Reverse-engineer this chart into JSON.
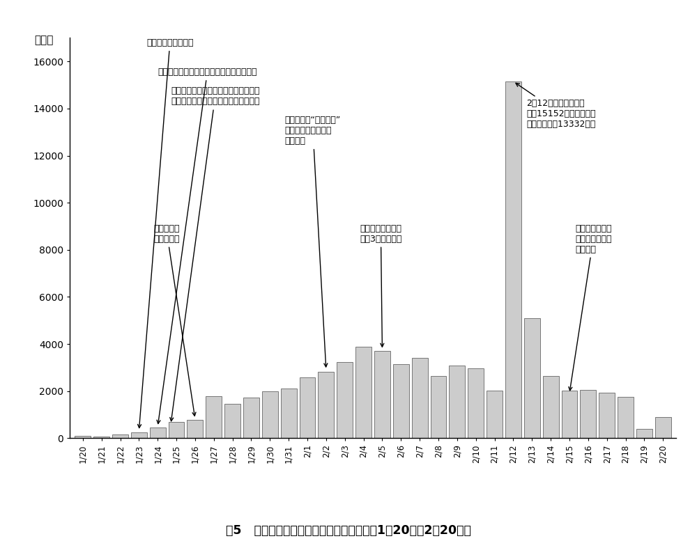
{
  "dates": [
    "1/20",
    "1/21",
    "1/22",
    "1/23",
    "1/24",
    "1/25",
    "1/26",
    "1/27",
    "1/28",
    "1/29",
    "1/30",
    "1/31",
    "2/1",
    "2/2",
    "2/3",
    "2/4",
    "2/5",
    "2/6",
    "2/7",
    "2/8",
    "2/9",
    "2/10",
    "2/11",
    "2/12",
    "2/13",
    "2/14",
    "2/15",
    "2/16",
    "2/17",
    "2/18",
    "2/19",
    "2/20"
  ],
  "values": [
    100,
    77,
    149,
    259,
    444,
    688,
    769,
    1771,
    1459,
    1737,
    1981,
    2102,
    2590,
    2829,
    3235,
    3887,
    3694,
    3143,
    3399,
    2656,
    3073,
    2982,
    2015,
    15152,
    5090,
    2641,
    2009,
    2048,
    1933,
    1749,
    394,
    889
  ],
  "bar_color": "#cccccc",
  "bar_edge_color": "#666666",
  "background_color": "#ffffff",
  "ylim": [
    0,
    17000
  ],
  "yticks": [
    0,
    2000,
    4000,
    6000,
    8000,
    10000,
    12000,
    14000,
    16000
  ],
  "ylabel": "（例）",
  "figure_caption": "图5   中国境内新冠肺炎新增确诊病例情况（1月20日至2月20日）",
  "ann1_text": "武汉市关闭离汉通道",
  "ann2_text": "从军地调集国家医疗队驰援湖北省、武汉市",
  "ann3_text": "中共中央成立应对疫情工作领导小组，\n决定向湖北等疫情严重地区派出指导组",
  "ann4_text": "中央指导组\n进馻武汉市",
  "ann5_text": "武汉市部署“四类人员”\n分类集中管理，开展\n拉网排查",
  "ann6_text": "武汉市建成并启用\n首批3家方舱医院",
  "ann7_text": "2月12日报告新增确诊\n病例15152例（含湖北省\n临床诊断病例13332例）",
  "ann8_text": "新增出院病例数\n开始超过新增确\n诊病例数"
}
